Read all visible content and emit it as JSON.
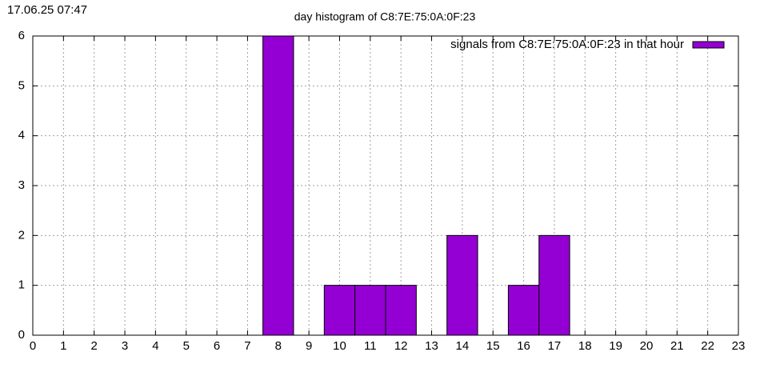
{
  "chart_data": {
    "type": "bar",
    "timestamp": "17.06.25 07:47",
    "title": "day histogram of C8:7E:75:0A:0F:23",
    "x": [
      8,
      10,
      11,
      12,
      14,
      16,
      17
    ],
    "series": [
      {
        "name": "signals from C8:7E:75:0A:0F:23 in that hour",
        "color": "#9400d3",
        "values": [
          6,
          1,
          1,
          1,
          2,
          1,
          2
        ]
      }
    ],
    "xlim": [
      0,
      23
    ],
    "xticks": [
      0,
      1,
      2,
      3,
      4,
      5,
      6,
      7,
      8,
      9,
      10,
      11,
      12,
      13,
      14,
      15,
      16,
      17,
      18,
      19,
      20,
      21,
      22,
      23
    ],
    "ylim": [
      0,
      6
    ],
    "yticks": [
      0,
      1,
      2,
      3,
      4,
      5,
      6
    ],
    "grid": true,
    "legend": "top-right"
  }
}
